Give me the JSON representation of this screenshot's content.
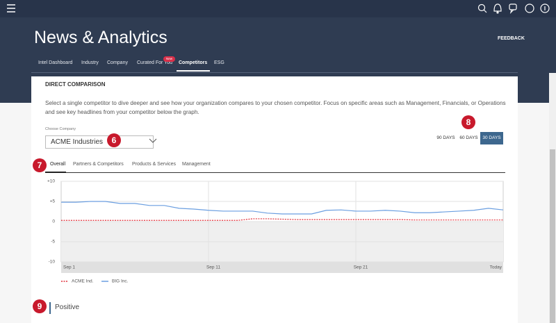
{
  "header": {
    "title": "News & Analytics",
    "feedback": "FEEDBACK"
  },
  "nav": {
    "tabs": [
      "Intel Dashboard",
      "Industry",
      "Company",
      "Curated For You",
      "Competitors",
      "ESG"
    ],
    "badge": "New",
    "active": "Competitors"
  },
  "section": {
    "title": "DIRECT COMPARISON",
    "description": "Select a single competitor to dive deeper and see how your organization compares to your chosen competitor. Focus on specific areas such as Management, Financials, or Operations and see key headlines from your competitor below the graph.",
    "choose_label": "Choose Company",
    "selected_company": "ACME Industries",
    "range_buttons": [
      "90 DAYS",
      "60 DAYS",
      "30 DAYS"
    ],
    "active_range": "30 DAYS",
    "sub_tabs": [
      "Overall",
      "Partners & Competitors",
      "Products & Services",
      "Management"
    ],
    "active_sub_tab": "Overall"
  },
  "chart_data": {
    "type": "line",
    "categories": [
      "Sep 1",
      null,
      null,
      null,
      null,
      null,
      null,
      null,
      null,
      null,
      "Sep 11",
      null,
      null,
      null,
      null,
      null,
      null,
      null,
      null,
      null,
      "Sep 21",
      null,
      null,
      null,
      null,
      null,
      null,
      null,
      null,
      null,
      "Today"
    ],
    "series": [
      {
        "name": "ACME Ind.",
        "color": "#e0303a",
        "dashed": true,
        "values": [
          0.3,
          0.3,
          0.3,
          0.3,
          0.3,
          0.3,
          0.3,
          0.3,
          0.3,
          0.3,
          0.3,
          0.3,
          0.3,
          0.7,
          0.7,
          0.6,
          0.5,
          0.5,
          0.5,
          0.5,
          0.5,
          0.5,
          0.5,
          0.5,
          0.4,
          0.4,
          0.4,
          0.4,
          0.4,
          0.4,
          0.4
        ]
      },
      {
        "name": "BIG Inc.",
        "color": "#6a9ee0",
        "dashed": false,
        "values": [
          4.8,
          4.8,
          5.0,
          5.0,
          4.5,
          4.5,
          4.0,
          4.0,
          3.3,
          3.1,
          2.8,
          2.6,
          2.6,
          2.6,
          2.1,
          1.9,
          1.9,
          1.9,
          2.8,
          2.9,
          2.6,
          2.6,
          2.8,
          2.6,
          2.2,
          2.2,
          2.4,
          2.6,
          2.8,
          3.3,
          2.9
        ]
      }
    ],
    "ylim": [
      -10,
      10
    ],
    "yticks": [
      {
        "value": 10,
        "label": "+10"
      },
      {
        "value": 5,
        "label": "+5"
      },
      0,
      -5,
      -10
    ],
    "grid": true
  },
  "sentiment_heading": "Positive",
  "annotations": [
    "6",
    "7",
    "8",
    "9"
  ]
}
